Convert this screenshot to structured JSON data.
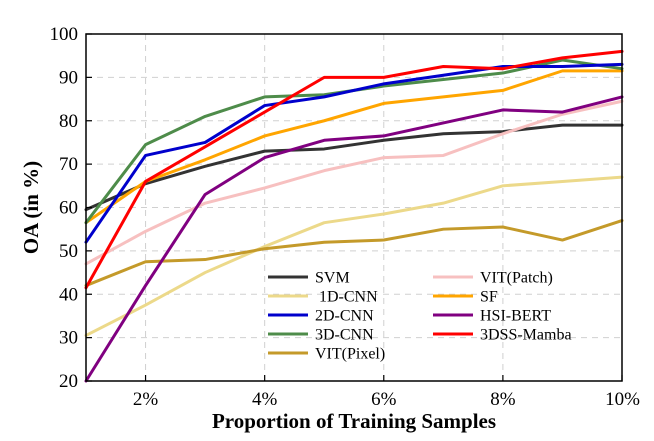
{
  "chart_data": {
    "type": "line",
    "title": "",
    "xlabel": "Proportion of Training Samples",
    "ylabel": "OA (in %)",
    "x": [
      1,
      2,
      3,
      4,
      5,
      6,
      7,
      8,
      9,
      10
    ],
    "xlim": [
      1,
      10
    ],
    "ylim": [
      20,
      100
    ],
    "xticks": [
      2,
      4,
      6,
      8,
      10
    ],
    "xtick_labels": [
      "2%",
      "4%",
      "6%",
      "8%",
      "10%"
    ],
    "yticks": [
      20,
      30,
      40,
      50,
      60,
      70,
      80,
      90,
      100
    ],
    "ytick_labels": [
      "20",
      "30",
      "40",
      "50",
      "60",
      "70",
      "80",
      "90",
      "100"
    ],
    "grid": true,
    "legend_position": "bottom-right",
    "series": [
      {
        "name": "SVM",
        "color": "#333333",
        "values": [
          59.5,
          65.5,
          69.5,
          73.0,
          73.5,
          75.5,
          77.0,
          77.5,
          79.0,
          79.0
        ]
      },
      {
        "name": " 1D-CNN",
        "color": "#ecd98a",
        "values": [
          30.5,
          37.5,
          45.0,
          51.0,
          56.5,
          58.5,
          61.0,
          65.0,
          66.0,
          67.0
        ]
      },
      {
        "name": "2D-CNN",
        "color": "#0000cc",
        "values": [
          52.0,
          72.0,
          75.0,
          83.5,
          85.5,
          88.5,
          90.5,
          92.5,
          92.5,
          93.0
        ]
      },
      {
        "name": "3D-CNN",
        "color": "#4e8c4a",
        "values": [
          56.5,
          74.5,
          81.0,
          85.5,
          86.0,
          88.0,
          89.5,
          91.0,
          94.0,
          92.0
        ]
      },
      {
        "name": "VIT(Pixel)",
        "color": "#c49a2a",
        "values": [
          42.0,
          47.5,
          48.0,
          50.5,
          52.0,
          52.5,
          55.0,
          55.5,
          52.5,
          57.0
        ]
      },
      {
        "name": "VIT(Patch)",
        "color": "#f7c0c0",
        "values": [
          47.0,
          54.5,
          61.0,
          64.5,
          68.5,
          71.5,
          72.0,
          77.0,
          81.5,
          84.5
        ]
      },
      {
        "name": "SF",
        "color": "#ffa500",
        "values": [
          56.5,
          66.0,
          71.0,
          76.5,
          80.0,
          84.0,
          85.5,
          87.0,
          91.5,
          91.5
        ]
      },
      {
        "name": "HSI-BERT",
        "color": "#800080",
        "values": [
          20.0,
          42.0,
          63.0,
          71.5,
          75.5,
          76.5,
          79.5,
          82.5,
          82.0,
          85.5
        ]
      },
      {
        "name": "3DSS-Mamba",
        "color": "#ff0000",
        "values": [
          41.5,
          66.0,
          74.0,
          82.0,
          90.0,
          90.0,
          92.5,
          92.0,
          94.5,
          96.0
        ]
      }
    ]
  }
}
